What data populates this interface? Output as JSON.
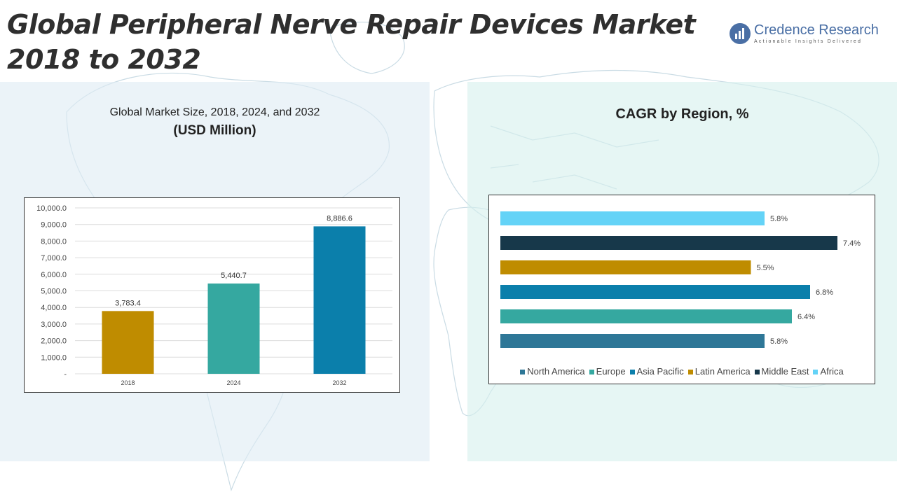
{
  "title_lines": [
    "Global Peripheral Nerve Repair Devices Market",
    "2018 to 2032"
  ],
  "logo": {
    "name": "Credence Research",
    "tagline": "Actionable Insights Delivered",
    "color": "#4a6fa5"
  },
  "left_panel": {
    "subtitle": "Global Market Size, 2018, 2024, and 2032",
    "unit": "(USD Million)"
  },
  "right_panel": {
    "title": "CAGR by Region, %"
  },
  "chart_data": [
    {
      "type": "bar",
      "categories": [
        "2018",
        "2024",
        "2032"
      ],
      "values": [
        3783.4,
        5440.7,
        8886.6
      ],
      "value_labels": [
        "3,783.4",
        "5,440.7",
        "8,886.6"
      ],
      "colors": [
        "#bf8c00",
        "#35a8a0",
        "#0b7fab"
      ],
      "ylim": [
        0,
        10000
      ],
      "yticks": [
        {
          "value": 0,
          "label": "-"
        },
        {
          "value": 1000,
          "label": "1,000.0"
        },
        {
          "value": 2000,
          "label": "2,000.0"
        },
        {
          "value": 3000,
          "label": "3,000.0"
        },
        {
          "value": 4000,
          "label": "4,000.0"
        },
        {
          "value": 5000,
          "label": "5,000.0"
        },
        {
          "value": 6000,
          "label": "6,000.0"
        },
        {
          "value": 7000,
          "label": "7,000.0"
        },
        {
          "value": 8000,
          "label": "8,000.0"
        },
        {
          "value": 9000,
          "label": "9,000.0"
        },
        {
          "value": 10000,
          "label": "10,000.0"
        }
      ],
      "grid": true
    },
    {
      "type": "bar",
      "orientation": "horizontal",
      "xlim": [
        0,
        8
      ],
      "grid": false,
      "legend_position": "bottom",
      "series": [
        {
          "name": "North America",
          "value": 5.8,
          "label": "5.8%",
          "color": "#2e7797"
        },
        {
          "name": "Europe",
          "value": 6.4,
          "label": "6.4%",
          "color": "#35a8a0"
        },
        {
          "name": "Asia Pacific",
          "value": 6.8,
          "label": "6.8%",
          "color": "#0b7fab"
        },
        {
          "name": "Latin America",
          "value": 5.5,
          "label": "5.5%",
          "color": "#bf8c00"
        },
        {
          "name": "Middle East",
          "value": 7.4,
          "label": "7.4%",
          "color": "#17384a"
        },
        {
          "name": "Africa",
          "value": 5.8,
          "label": "5.8%",
          "color": "#64d3f7"
        }
      ]
    }
  ]
}
